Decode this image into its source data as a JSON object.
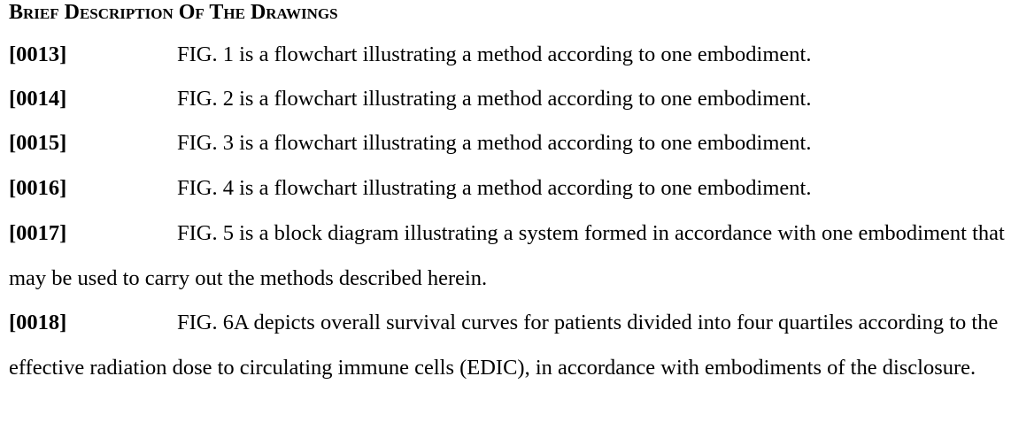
{
  "heading": "Brief Description Of The Drawings",
  "paragraphs": [
    {
      "number": "[0013]",
      "text": "FIG. 1 is a flowchart illustrating a method according to one embodiment."
    },
    {
      "number": "[0014]",
      "text": "FIG. 2 is a flowchart illustrating a method according to one embodiment."
    },
    {
      "number": "[0015]",
      "text": "FIG. 3 is a flowchart illustrating a method according to one embodiment."
    },
    {
      "number": "[0016]",
      "text": "FIG. 4 is a flowchart illustrating a method according to one embodiment."
    },
    {
      "number": "[0017]",
      "text": "FIG. 5 is a block diagram illustrating a system formed in accordance with one embodiment that may be used to carry out the methods described herein."
    },
    {
      "number": "[0018]",
      "text": "FIG. 6A depicts overall survival curves for patients divided into four quartiles according to the effective radiation dose to circulating immune cells (EDIC), in accordance with embodiments of the disclosure."
    }
  ]
}
